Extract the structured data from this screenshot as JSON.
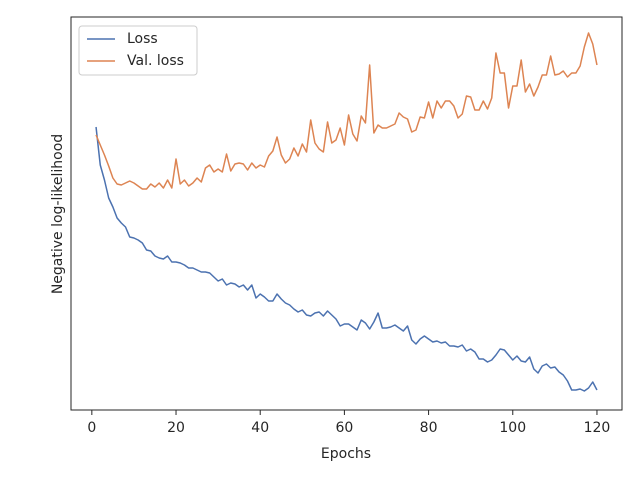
{
  "chart_data": {
    "type": "line",
    "xlabel": "Epochs",
    "ylabel": "Negative log-likelihood",
    "x": [
      1,
      2,
      3,
      4,
      5,
      6,
      7,
      8,
      9,
      10,
      11,
      12,
      13,
      14,
      15,
      16,
      17,
      18,
      19,
      20,
      21,
      22,
      23,
      24,
      25,
      26,
      27,
      28,
      29,
      30,
      31,
      32,
      33,
      34,
      35,
      36,
      37,
      38,
      39,
      40,
      41,
      42,
      43,
      44,
      45,
      46,
      47,
      48,
      49,
      50,
      51,
      52,
      53,
      54,
      55,
      56,
      57,
      58,
      59,
      60,
      61,
      62,
      63,
      64,
      65,
      66,
      67,
      68,
      69,
      70,
      71,
      72,
      73,
      74,
      75,
      76,
      77,
      78,
      79,
      80,
      81,
      82,
      83,
      84,
      85,
      86,
      87,
      88,
      89,
      90,
      91,
      92,
      93,
      94,
      95,
      96,
      97,
      98,
      99,
      100,
      101,
      102,
      103,
      104,
      105,
      106,
      107,
      108,
      109,
      110,
      111,
      112,
      113,
      114,
      115,
      116,
      117,
      118,
      119,
      120
    ],
    "series": [
      {
        "name": "Loss",
        "color": "#4c72b0",
        "values": [
          283,
          245,
          230,
          212,
          203,
          192,
          187,
          183,
          173,
          172,
          170,
          167,
          160,
          159,
          154,
          152,
          151,
          154,
          148,
          148,
          147,
          145,
          142,
          142,
          140,
          138,
          138,
          137,
          133,
          129,
          131,
          125,
          127,
          126,
          123,
          125,
          120,
          125,
          112,
          116,
          113,
          109,
          109,
          116,
          111,
          107,
          105,
          101,
          98,
          100,
          95,
          94,
          97,
          98,
          94,
          99,
          95,
          91,
          84,
          86,
          86,
          83,
          80,
          90,
          87,
          81,
          88,
          97,
          82,
          82,
          83,
          85,
          82,
          79,
          84,
          70,
          66,
          71,
          74,
          71,
          68,
          69,
          67,
          68,
          64,
          64,
          63,
          65,
          59,
          61,
          58,
          51,
          51,
          48,
          50,
          55,
          61,
          60,
          55,
          50,
          54,
          49,
          48,
          53,
          41,
          37,
          44,
          46,
          42,
          43,
          38,
          35,
          29,
          20,
          20,
          21,
          19,
          22,
          28,
          20
        ]
      },
      {
        "name": "Val. loss",
        "color": "#dd8452",
        "values": [
          275,
          265,
          255,
          244,
          232,
          226,
          225,
          227,
          229,
          227,
          224,
          221,
          221,
          226,
          223,
          227,
          222,
          230,
          222,
          251,
          226,
          230,
          224,
          227,
          232,
          228,
          242,
          245,
          238,
          241,
          238,
          256,
          239,
          246,
          247,
          246,
          240,
          247,
          242,
          245,
          243,
          254,
          259,
          273,
          255,
          247,
          251,
          262,
          254,
          266,
          258,
          290,
          267,
          261,
          258,
          288,
          267,
          270,
          282,
          265,
          295,
          276,
          269,
          294,
          287,
          345,
          277,
          285,
          282,
          282,
          284,
          286,
          297,
          293,
          291,
          278,
          280,
          293,
          292,
          308,
          292,
          309,
          302,
          309,
          309,
          304,
          292,
          296,
          314,
          313,
          300,
          300,
          309,
          301,
          312,
          357,
          337,
          337,
          302,
          324,
          324,
          350,
          318,
          326,
          314,
          323,
          335,
          335,
          354,
          335,
          336,
          339,
          333,
          337,
          337,
          344,
          363,
          377,
          366,
          345
        ]
      }
    ],
    "xlim": [
      -4.95,
      125.95
    ],
    "xticks": [
      0,
      20,
      40,
      60,
      80,
      100,
      120
    ],
    "ylim": [
      0,
      393
    ],
    "legend": "upper left"
  }
}
